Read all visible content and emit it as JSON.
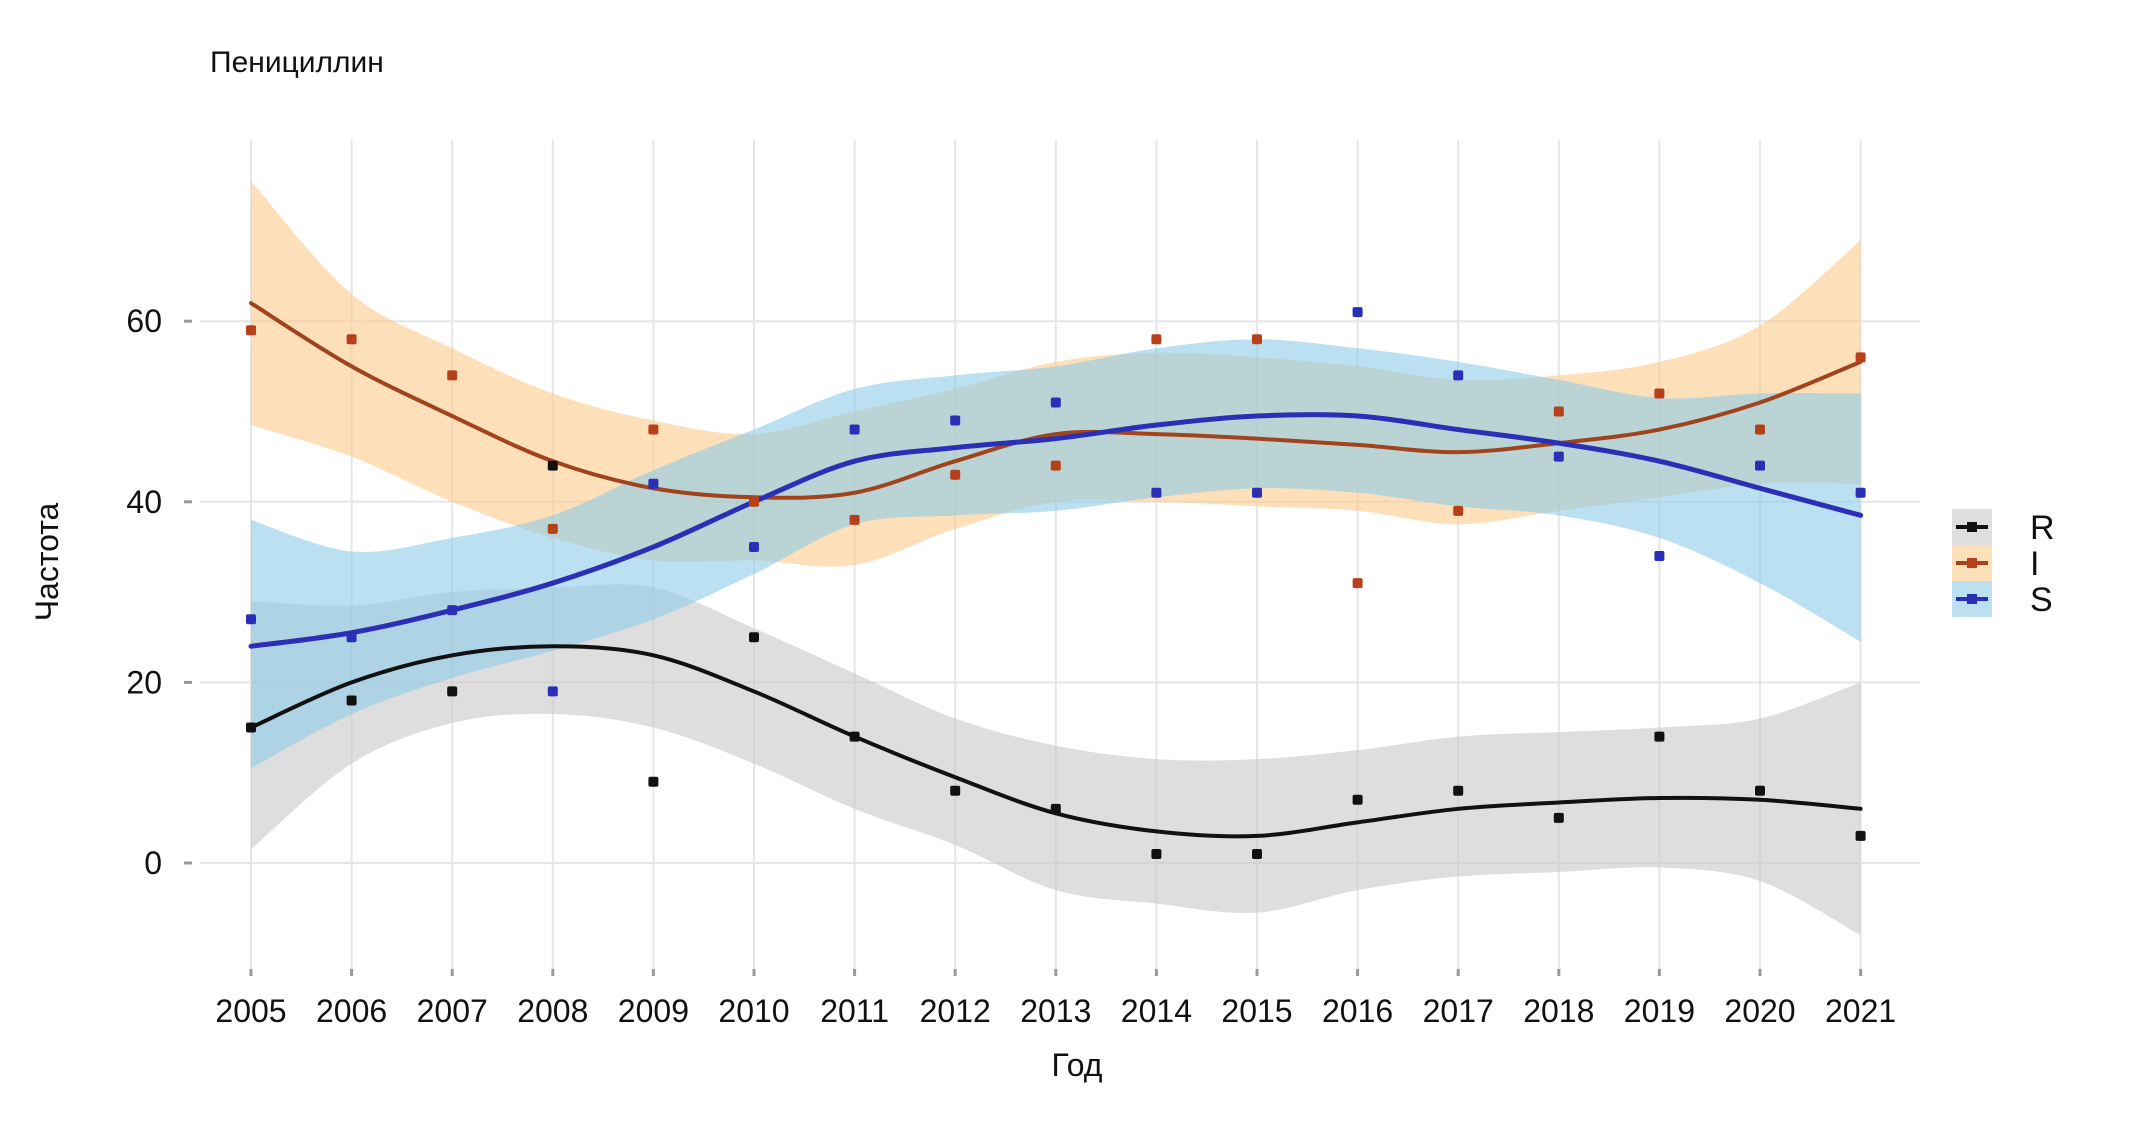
{
  "chart_data": {
    "type": "scatter",
    "title": "Пенициллин",
    "xlabel": "Год",
    "ylabel": "Частота",
    "x": [
      2005,
      2006,
      2007,
      2008,
      2009,
      2010,
      2011,
      2012,
      2013,
      2014,
      2015,
      2016,
      2017,
      2018,
      2019,
      2020,
      2021
    ],
    "x_tick_labels": [
      "2005",
      "2006",
      "2007",
      "2008",
      "2009",
      "2010",
      "2011",
      "2012",
      "2013",
      "2014",
      "2015",
      "2016",
      "2017",
      "2018",
      "2019",
      "2020",
      "2021"
    ],
    "y_ticks": [
      0,
      20,
      40,
      60
    ],
    "y_tick_labels": [
      "0",
      "20",
      "40",
      "60"
    ],
    "xlim": [
      2004.5,
      2021.6
    ],
    "ylim": [
      -12,
      80
    ],
    "grid": true,
    "legend_position": "right",
    "smoothing": "loess with confidence band",
    "series": [
      {
        "name": "R",
        "color": "#111111",
        "band_color": "#c8c8c8",
        "values": [
          15,
          18,
          19,
          44,
          9,
          25,
          14,
          8,
          6,
          1,
          1,
          7,
          8,
          5,
          14,
          8,
          3
        ],
        "smooth": [
          15,
          20,
          23,
          24,
          23,
          19,
          14,
          9.5,
          5.5,
          3.5,
          3,
          4.5,
          6,
          6.7,
          7.2,
          7,
          6
        ],
        "band_low": [
          1.5,
          11,
          15.5,
          16.5,
          15,
          11,
          6,
          2,
          -3,
          -4.5,
          -5.5,
          -3,
          -1.5,
          -1,
          -0.5,
          -2,
          -8
        ],
        "band_high": [
          29,
          28.5,
          30,
          30.5,
          30.5,
          26,
          21,
          16,
          13,
          11.5,
          11.5,
          12.5,
          14,
          14.5,
          15,
          16,
          20
        ]
      },
      {
        "name": "I",
        "color": "#b5401a",
        "line_color": "#a0441e",
        "band_color": "#fbc98a",
        "values": [
          59,
          58,
          54,
          37,
          48,
          40,
          38,
          43,
          44,
          58,
          58,
          31,
          39,
          50,
          52,
          48,
          56
        ],
        "smooth": [
          62,
          55,
          49.5,
          44.5,
          41.5,
          40.5,
          41,
          44.5,
          47.5,
          47.5,
          47,
          46.3,
          45.5,
          46.5,
          48,
          51,
          55.5
        ],
        "band_low": [
          48.5,
          45,
          40,
          36,
          33.5,
          33.5,
          33,
          37,
          40,
          40,
          39.5,
          39,
          37.5,
          39,
          40.5,
          42,
          42
        ],
        "band_high": [
          75.5,
          63,
          57,
          52,
          49,
          47.5,
          50,
          52.5,
          55.5,
          56.5,
          56,
          55,
          53.5,
          54,
          55.5,
          59.5,
          69
        ]
      },
      {
        "name": "S",
        "color": "#2a2fb5",
        "band_color": "#8ecbe8",
        "values": [
          27,
          25,
          28,
          19,
          42,
          35,
          48,
          49,
          51,
          41,
          41,
          61,
          54,
          45,
          34,
          44,
          41
        ],
        "smooth": [
          24,
          25.5,
          28,
          31,
          35,
          40,
          44.5,
          46,
          47,
          48.5,
          49.5,
          49.5,
          48,
          46.5,
          44.5,
          41.5,
          38.5
        ],
        "band_low": [
          10.5,
          16.5,
          20.5,
          23.5,
          27,
          32,
          37.5,
          38.5,
          39,
          40.5,
          41.5,
          41,
          39.5,
          38.5,
          36,
          31,
          24.5
        ],
        "band_high": [
          38,
          34.5,
          36,
          38.5,
          43.5,
          48,
          52.5,
          54,
          55,
          57,
          58,
          57,
          55.5,
          53.5,
          51.5,
          52,
          52
        ]
      }
    ]
  }
}
